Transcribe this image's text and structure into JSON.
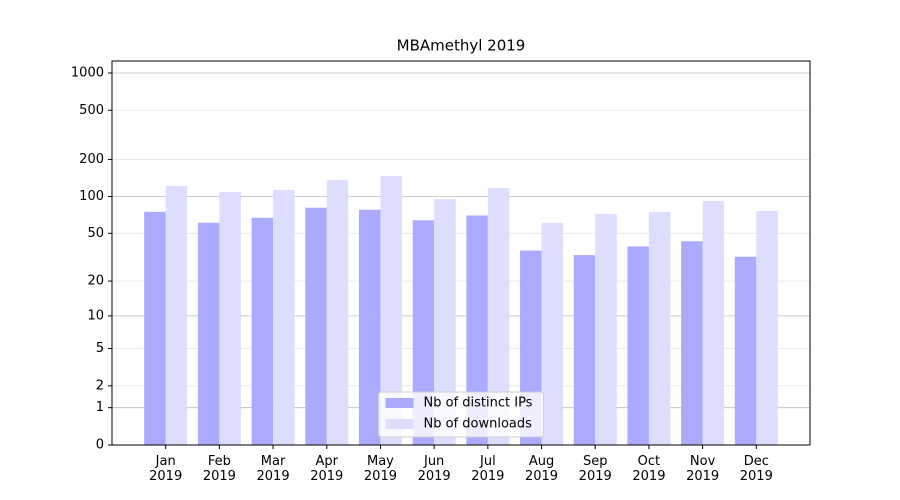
{
  "chart_data": {
    "type": "bar",
    "title": "MBAmethyl 2019",
    "categories": [
      "Jan\n2019",
      "Feb\n2019",
      "Mar\n2019",
      "Apr\n2019",
      "May\n2019",
      "Jun\n2019",
      "Jul\n2019",
      "Aug\n2019",
      "Sep\n2019",
      "Oct\n2019",
      "Nov\n2019",
      "Dec\n2019"
    ],
    "series": [
      {
        "name": "Nb of distinct IPs",
        "color": "#aaaaff",
        "values": [
          75,
          61,
          67,
          81,
          78,
          64,
          70,
          36,
          33,
          39,
          43,
          32
        ]
      },
      {
        "name": "Nb of downloads",
        "color": "#ddddff",
        "values": [
          122,
          109,
          113,
          136,
          147,
          95,
          117,
          61,
          72,
          75,
          92,
          76
        ]
      }
    ],
    "yscale": "log1p",
    "ylim": [
      0,
      1250
    ],
    "yticks": [
      0,
      1,
      2,
      5,
      10,
      20,
      50,
      100,
      200,
      500,
      1000
    ],
    "grid": true,
    "legend": "lower center"
  }
}
